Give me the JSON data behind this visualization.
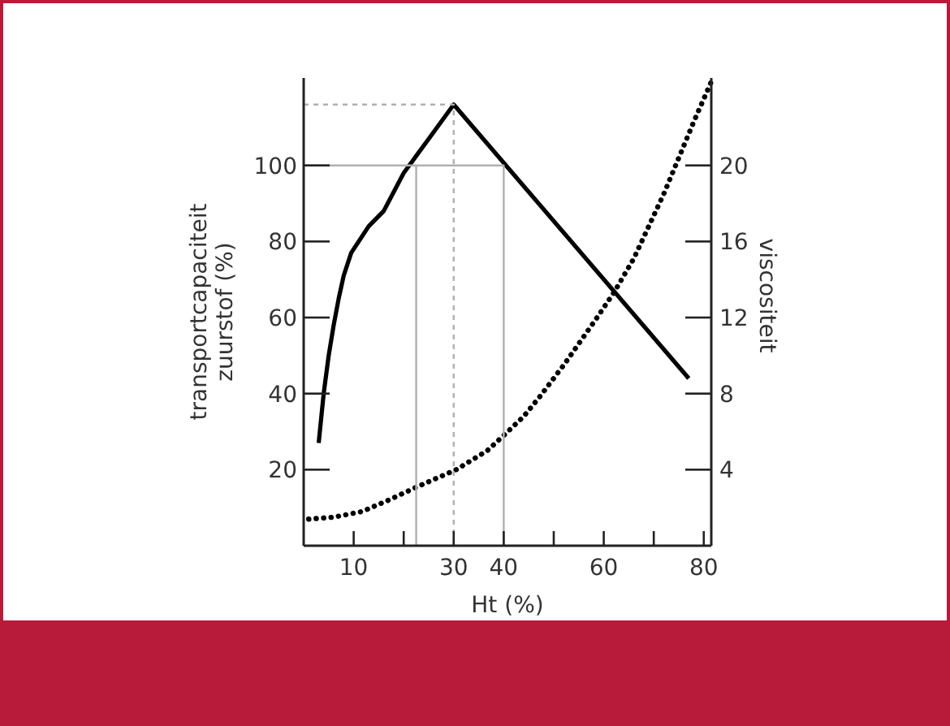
{
  "chart_data": {
    "type": "line",
    "xlabel": "Ht (%)",
    "ylabel": "transportcapaciteit\nzuurstof (%)",
    "y2label": "viscositeit",
    "xlim": [
      0,
      81.5
    ],
    "xticks": [
      10,
      {
        "value": 20,
        "label": null
      },
      30,
      40,
      {
        "value": 50,
        "label": null
      },
      60,
      {
        "value": 70,
        "label": null
      },
      80
    ],
    "ylim": [
      0,
      123
    ],
    "yticks": [
      20,
      40,
      60,
      80,
      100
    ],
    "y2lim": [
      0,
      24.6
    ],
    "y2ticks": [
      4,
      8,
      12,
      16,
      20
    ],
    "series": [
      {
        "color": "#000000",
        "x": [
          3,
          4,
          5,
          6,
          7,
          8,
          9.5,
          11,
          13,
          16,
          20,
          25,
          30,
          77
        ],
        "values": [
          27,
          40,
          50,
          58,
          65,
          71,
          77,
          80,
          84,
          88,
          98,
          107,
          116,
          44
        ]
      },
      {
        "color": "#000000",
        "axis": "y2",
        "line_style": "dotted",
        "x": [
          1,
          6,
          11.7,
          17,
          22.7,
          30.5,
          36.7,
          40,
          44,
          47.4,
          52,
          58.4,
          62,
          66,
          69,
          72,
          75,
          78,
          81.5
        ],
        "values": [
          1.4,
          1.5,
          1.8,
          2.4,
          3.1,
          4.0,
          5.0,
          5.8,
          6.8,
          7.9,
          9.5,
          11.9,
          13.3,
          15.1,
          16.8,
          18.5,
          20.4,
          22.3,
          24.4
        ]
      },
      {
        "color": "#b0b0b0",
        "x": [
          0,
          40,
          40
        ],
        "values": [
          100,
          100,
          0
        ]
      },
      {
        "color": "#b0b0b0",
        "x": [
          22.5,
          22.5
        ],
        "values": [
          0,
          100
        ]
      },
      {
        "color": "#b0b0b0",
        "line_style": "dashed",
        "x": [
          0,
          30,
          30
        ],
        "values": [
          116,
          116,
          0
        ]
      }
    ]
  }
}
